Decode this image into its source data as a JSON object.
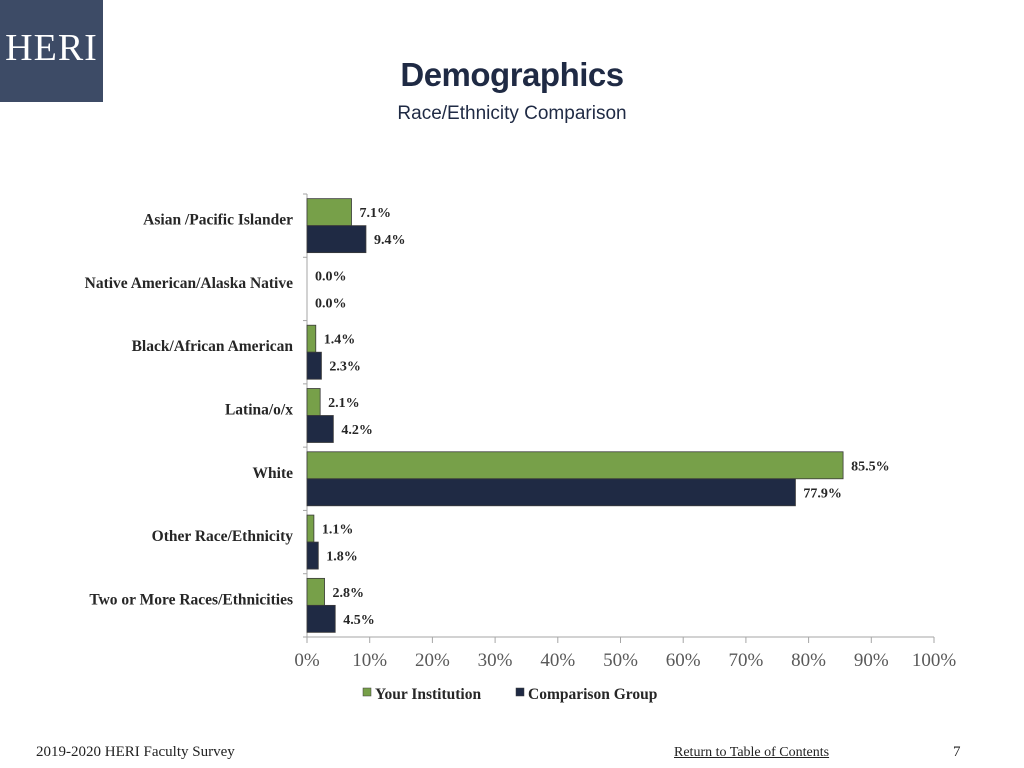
{
  "logo": {
    "text": "HERI",
    "background": "#3d4b66"
  },
  "header": {
    "title": "Demographics",
    "subtitle": "Race/Ethnicity Comparison"
  },
  "chart_data": {
    "type": "bar",
    "orientation": "horizontal",
    "categories": [
      "Asian /Pacific Islander",
      "Native American/Alaska Native",
      "Black/African American",
      "Latina/o/x",
      "White",
      "Other Race/Ethnicity",
      "Two or More Races/Ethnicities"
    ],
    "series": [
      {
        "name": "Your Institution",
        "color": "#77a049",
        "values": [
          7.1,
          0.0,
          1.4,
          2.1,
          85.5,
          1.1,
          2.8
        ],
        "labels": [
          "7.1%",
          "0.0%",
          "1.4%",
          "2.1%",
          "85.5%",
          "1.1%",
          "2.8%"
        ]
      },
      {
        "name": "Comparison Group",
        "color": "#1f2a44",
        "values": [
          9.4,
          0.0,
          2.3,
          4.2,
          77.9,
          1.8,
          4.5
        ],
        "labels": [
          "9.4%",
          "0.0%",
          "2.3%",
          "4.2%",
          "77.9%",
          "1.8%",
          "4.5%"
        ]
      }
    ],
    "xlim": [
      0,
      100
    ],
    "ticks": [
      "0%",
      "10%",
      "20%",
      "30%",
      "40%",
      "50%",
      "60%",
      "70%",
      "80%",
      "90%",
      "100%"
    ],
    "legend": "bottom",
    "grid": false
  },
  "footer": {
    "survey": "2019-2020 HERI Faculty Survey",
    "link": "Return to Table of Contents",
    "page": "7"
  }
}
